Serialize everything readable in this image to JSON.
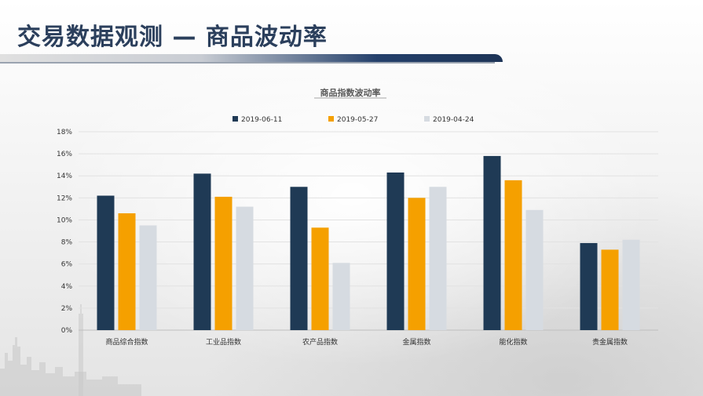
{
  "slide": {
    "title": "交易数据观测 — 商品波动率"
  },
  "colors": {
    "series_1": "#1f3a55",
    "series_2": "#f5a000",
    "series_3": "#d6dbe1",
    "title_text": "#2b3f5c"
  },
  "chart_data": {
    "type": "bar",
    "title": "商品指数波动率",
    "categories": [
      "商品综合指数",
      "工业品指数",
      "农产品指数",
      "金属指数",
      "能化指数",
      "贵金属指数"
    ],
    "series": [
      {
        "name": "2019-06-11",
        "values": [
          12.2,
          14.2,
          13.0,
          14.3,
          15.8,
          7.9
        ]
      },
      {
        "name": "2019-05-27",
        "values": [
          10.6,
          12.1,
          9.3,
          12.0,
          13.6,
          7.3
        ]
      },
      {
        "name": "2019-04-24",
        "values": [
          9.5,
          11.2,
          6.1,
          13.0,
          10.9,
          8.2
        ]
      }
    ],
    "y_ticks": [
      "0%",
      "2%",
      "4%",
      "6%",
      "8%",
      "10%",
      "12%",
      "14%",
      "16%",
      "18%"
    ],
    "ylim": [
      0,
      18
    ],
    "y_unit": "%",
    "grid": true,
    "legend_position": "top-center"
  }
}
